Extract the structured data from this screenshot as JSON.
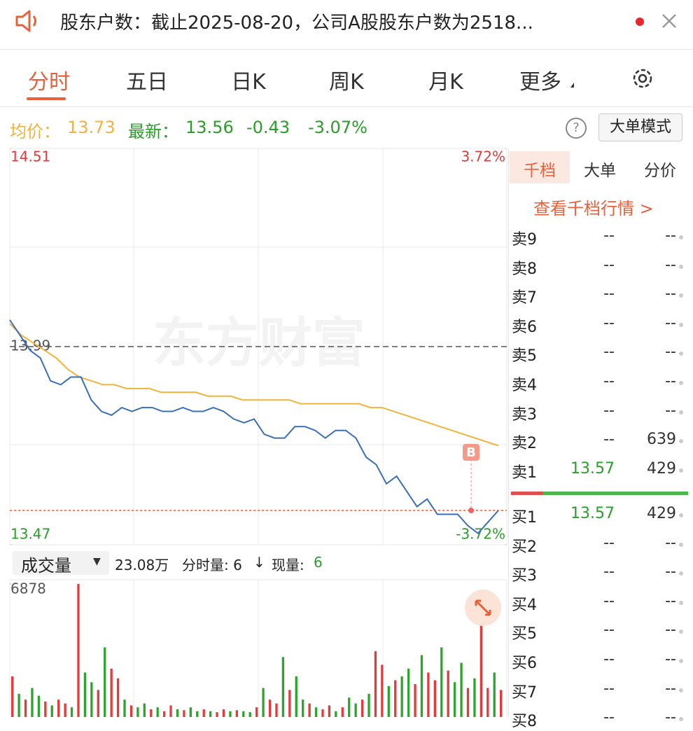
{
  "notice": {
    "text": "股东户数：截止2025-08-20，公司A股股东户数为2518..."
  },
  "tabs": [
    "分时",
    "五日",
    "日K",
    "周K",
    "月K",
    "更多"
  ],
  "quote": {
    "avg_label": "均价：",
    "avg": "13.73",
    "latest_label": "最新：",
    "latest": "13.56",
    "change": "-0.43",
    "pct": "-3.07%",
    "help": "?",
    "mode_button": "大单模式"
  },
  "chart_data": [
    {
      "type": "line",
      "watermark": "东方财富",
      "ylim": [
        13.47,
        14.51
      ],
      "yticks": [
        14.51,
        13.99,
        13.47
      ],
      "y2lim": [
        -3.72,
        3.72
      ],
      "y2ticks": [
        {
          "value": 3.72,
          "label": "3.72%"
        },
        {
          "value": -3.72,
          "label": "-3.72%"
        }
      ],
      "series": [
        {
          "name": "均价",
          "color": "#f0b43c",
          "values": [
            14.05,
            14.02,
            14.0,
            13.98,
            13.96,
            13.93,
            13.91,
            13.9,
            13.89,
            13.89,
            13.88,
            13.88,
            13.88,
            13.87,
            13.87,
            13.87,
            13.87,
            13.86,
            13.86,
            13.86,
            13.85,
            13.85,
            13.85,
            13.85,
            13.85,
            13.84,
            13.84,
            13.84,
            13.84,
            13.84,
            13.84,
            13.83,
            13.83,
            13.82,
            13.81,
            13.8,
            13.79,
            13.78,
            13.77,
            13.76,
            13.75,
            13.74,
            13.73
          ]
        },
        {
          "name": "最新",
          "color": "#3a6fb8",
          "values": [
            14.06,
            14.02,
            13.98,
            13.96,
            13.9,
            13.89,
            13.91,
            13.91,
            13.85,
            13.82,
            13.81,
            13.83,
            13.82,
            13.83,
            13.83,
            13.82,
            13.82,
            13.83,
            13.82,
            13.82,
            13.83,
            13.82,
            13.8,
            13.79,
            13.8,
            13.76,
            13.75,
            13.75,
            13.78,
            13.78,
            13.77,
            13.75,
            13.77,
            13.77,
            13.75,
            13.7,
            13.68,
            13.63,
            13.65,
            13.61,
            13.57,
            13.59,
            13.55,
            13.55,
            13.55,
            13.52,
            13.5,
            13.53,
            13.56
          ]
        }
      ],
      "marker": "B"
    },
    {
      "type": "bar",
      "label": "成交量",
      "total": "23.08万",
      "tick_volume": "分时量: 6",
      "arrow": "↓",
      "now_label": "现量:",
      "now": "6",
      "ylim": [
        0,
        6878
      ],
      "yticks": [
        6878
      ],
      "colors": [
        "#e23b3b",
        "#2da52d"
      ],
      "values": [
        2100,
        1200,
        900,
        1500,
        1100,
        800,
        600,
        900,
        700,
        500,
        6878,
        2300,
        1800,
        1400,
        3600,
        2500,
        2000,
        900,
        600,
        500,
        700,
        400,
        500,
        300,
        600,
        400,
        350,
        500,
        300,
        400,
        300,
        250,
        400,
        300,
        350,
        300,
        250,
        500,
        1500,
        900,
        700,
        3100,
        1400,
        2100,
        900,
        700,
        500,
        400,
        600,
        300,
        500,
        1000,
        700,
        900,
        1200,
        3400,
        2700,
        1600,
        1900,
        2100,
        2500,
        1700,
        3200,
        2300,
        1900,
        3600,
        2400,
        1800,
        2800,
        1500,
        2000,
        6000,
        1500,
        2300,
        1400
      ]
    }
  ],
  "orderbook": {
    "tabs": [
      "千档",
      "大单",
      "分价"
    ],
    "link": "查看千档行情 >",
    "asks": [
      [
        "卖9",
        "--",
        "--"
      ],
      [
        "卖8",
        "--",
        "--"
      ],
      [
        "卖7",
        "--",
        "--"
      ],
      [
        "卖6",
        "--",
        "--"
      ],
      [
        "卖5",
        "--",
        "--"
      ],
      [
        "卖4",
        "--",
        "--"
      ],
      [
        "卖3",
        "--",
        "--"
      ],
      [
        "卖2",
        "--",
        "639"
      ],
      [
        "卖1",
        "13.57",
        "429"
      ]
    ],
    "bids": [
      [
        "买1",
        "13.57",
        "429"
      ],
      [
        "买2",
        "--",
        "--"
      ],
      [
        "买3",
        "--",
        "--"
      ],
      [
        "买4",
        "--",
        "--"
      ],
      [
        "买5",
        "--",
        "--"
      ],
      [
        "买6",
        "--",
        "--"
      ],
      [
        "买7",
        "--",
        "--"
      ],
      [
        "买8",
        "--",
        "--"
      ]
    ]
  }
}
